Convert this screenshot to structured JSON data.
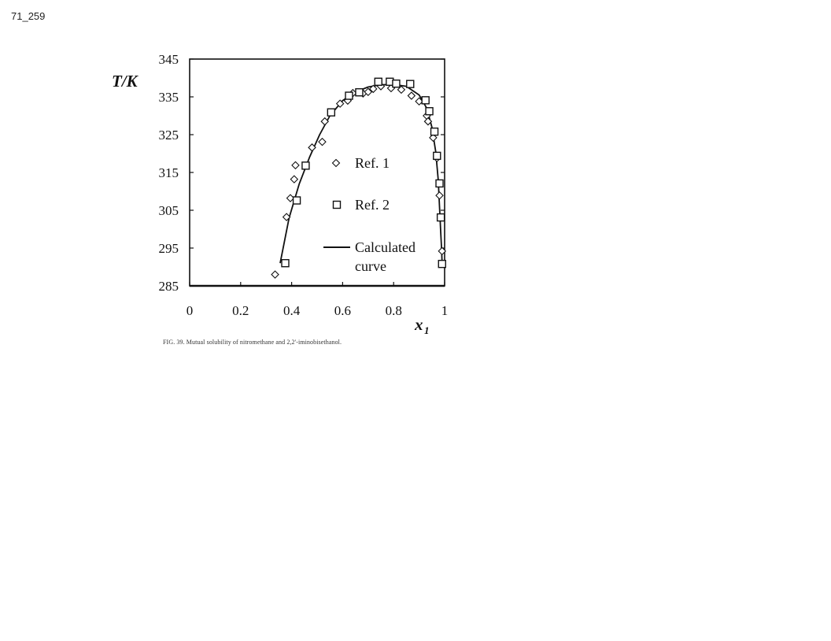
{
  "page_label": "71_259",
  "caption": "FIG. 39. Mutual solubility of nitromethane and 2,2'-iminobisethanol.",
  "chart_data": {
    "type": "scatter",
    "title": "",
    "xlabel": "x",
    "xlabel_subscript": "1",
    "ylabel": "T/K",
    "xlim": [
      0,
      1
    ],
    "ylim": [
      285,
      345
    ],
    "x_ticks": [
      0,
      0.2,
      0.4,
      0.6,
      0.8,
      1
    ],
    "x_tick_labels": [
      "0",
      "0.2",
      "0.4",
      "0.6",
      "0.8",
      "1"
    ],
    "y_ticks": [
      285,
      295,
      305,
      315,
      325,
      335,
      345
    ],
    "y_tick_labels": [
      "285",
      "295",
      "305",
      "315",
      "325",
      "335",
      "345"
    ],
    "grid": false,
    "legend_placement": "center",
    "series": [
      {
        "name": "Ref. 1",
        "marker": "diamond",
        "x": [
          0.335,
          0.38,
          0.395,
          0.41,
          0.415,
          0.48,
          0.52,
          0.53,
          0.59,
          0.62,
          0.64,
          0.68,
          0.7,
          0.72,
          0.75,
          0.79,
          0.83,
          0.87,
          0.9,
          0.93,
          0.935,
          0.955,
          0.97,
          0.98,
          0.99
        ],
        "y": [
          288,
          303.2,
          308.2,
          313.2,
          316.9,
          321.6,
          323.1,
          328.5,
          333.2,
          334,
          336,
          335.9,
          336.3,
          337.1,
          337.8,
          337.3,
          336.9,
          335.3,
          333.8,
          330,
          328.5,
          324.2,
          318.8,
          308.9,
          294.2
        ]
      },
      {
        "name": "Ref. 2",
        "marker": "square",
        "x": [
          0.375,
          0.42,
          0.455,
          0.555,
          0.625,
          0.665,
          0.74,
          0.785,
          0.81,
          0.865,
          0.925,
          0.94,
          0.96,
          0.97,
          0.98,
          0.985,
          0.99
        ],
        "y": [
          291,
          307.6,
          316.8,
          330.9,
          335.3,
          336.2,
          339,
          339,
          338.5,
          338.4,
          334.1,
          331.2,
          325.8,
          319.4,
          312.1,
          303.1,
          290.8
        ]
      },
      {
        "name": "Calculated curve",
        "name_lines": [
          "Calculated",
          "curve"
        ],
        "line": "solid",
        "x": [
          0.355,
          0.39,
          0.43,
          0.47,
          0.51,
          0.55,
          0.6,
          0.65,
          0.7,
          0.75,
          0.8,
          0.85,
          0.9,
          0.93,
          0.95,
          0.965,
          0.975,
          0.98,
          0.985,
          0.988,
          0.99
        ],
        "y": [
          291,
          303,
          312,
          319,
          325,
          330,
          334,
          336.3,
          337.6,
          338.2,
          338.3,
          337.8,
          335.5,
          332,
          327,
          320.5,
          313,
          306,
          299,
          295,
          291
        ]
      }
    ]
  }
}
